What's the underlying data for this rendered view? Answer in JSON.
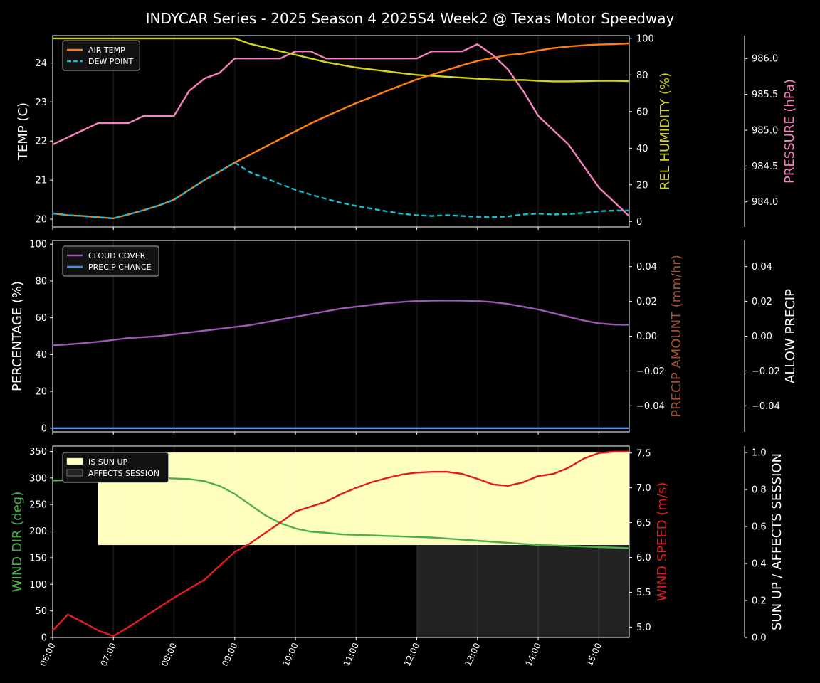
{
  "title": "INDYCAR Series - 2025 Season 4 2025S4 Week2 @ Texas Motor Speedway",
  "colors": {
    "background": "#000000",
    "air_temp": "#ff7f0e",
    "dew_point": "#17becf",
    "humidity": "#d4d41b",
    "pressure": "#f781bf",
    "cloud": "#9b59b6",
    "precip_chance": "#4a90e2",
    "precip_amount_label": "#a0522d",
    "sun_up": "#ffffc0",
    "affects_session": "#222222",
    "wind_dir": "#4daf4a",
    "wind_speed": "#e41a1c"
  },
  "chart_data": [
    {
      "type": "line",
      "panel": "temperature",
      "x": [
        "06:00",
        "06:15",
        "06:30",
        "06:45",
        "07:00",
        "07:15",
        "07:30",
        "07:45",
        "08:00",
        "08:15",
        "08:30",
        "08:45",
        "09:00",
        "09:15",
        "09:30",
        "09:45",
        "10:00",
        "10:15",
        "10:30",
        "10:45",
        "11:00",
        "11:15",
        "11:30",
        "11:45",
        "12:00",
        "12:15",
        "12:30",
        "12:45",
        "13:00",
        "13:15",
        "13:30",
        "13:45",
        "14:00",
        "14:15",
        "14:30",
        "14:45",
        "15:00",
        "15:15",
        "15:30"
      ],
      "ylabel": "TEMP (C)",
      "y2label": "REL HUMIDITY (%)",
      "y3label": "PRESSURE (hPa)",
      "ylim": [
        19.8,
        24.7
      ],
      "y2lim": [
        -3,
        101.5
      ],
      "y3lim": [
        983.65,
        986.32
      ],
      "yticks": [
        20,
        21,
        22,
        23,
        24
      ],
      "y2ticks": [
        0,
        20,
        40,
        60,
        80,
        100
      ],
      "y3ticks": [
        "984.0",
        "984.5",
        "985.0",
        "985.5",
        "986.0"
      ],
      "legend": "top-left",
      "series": [
        {
          "name": "AIR TEMP",
          "axis": "left",
          "style": "solid",
          "values": [
            20.15,
            20.1,
            20.08,
            20.05,
            20.02,
            20.12,
            20.23,
            20.35,
            20.5,
            20.75,
            21.0,
            21.22,
            21.45,
            21.65,
            21.85,
            22.05,
            22.25,
            22.45,
            22.63,
            22.8,
            22.97,
            23.12,
            23.28,
            23.43,
            23.58,
            23.7,
            23.82,
            23.94,
            24.05,
            24.13,
            24.2,
            24.24,
            24.32,
            24.38,
            24.42,
            24.45,
            24.47,
            24.48,
            24.5
          ]
        },
        {
          "name": "DEW POINT",
          "axis": "left",
          "style": "dashed",
          "values": [
            20.15,
            20.1,
            20.08,
            20.05,
            20.02,
            20.12,
            20.23,
            20.35,
            20.5,
            20.75,
            21.0,
            21.22,
            21.45,
            21.2,
            21.05,
            20.9,
            20.75,
            20.63,
            20.52,
            20.42,
            20.34,
            20.27,
            20.2,
            20.14,
            20.1,
            20.08,
            20.1,
            20.08,
            20.06,
            20.05,
            20.07,
            20.12,
            20.14,
            20.12,
            20.13,
            20.16,
            20.2,
            20.22,
            20.22
          ]
        },
        {
          "name": "REL HUMIDITY",
          "axis": "right",
          "style": "solid",
          "values": [
            100,
            100,
            100,
            100,
            100,
            100,
            100,
            100,
            100,
            100,
            100,
            100,
            100,
            97,
            95,
            93,
            91,
            89,
            87,
            85.5,
            84,
            83,
            82,
            81,
            80,
            79.5,
            79,
            78.5,
            78,
            77.5,
            77.2,
            77.3,
            76.8,
            76.5,
            76.5,
            76.6,
            76.8,
            76.8,
            76.6
          ]
        },
        {
          "name": "PRESSURE",
          "axis": "right2",
          "style": "solid",
          "values": [
            984.8,
            984.9,
            985.0,
            985.1,
            985.1,
            985.1,
            985.2,
            985.2,
            985.2,
            985.55,
            985.72,
            985.8,
            986.0,
            986.0,
            986.0,
            986.0,
            986.1,
            986.1,
            986.0,
            986.0,
            986.0,
            986.0,
            986.0,
            986.0,
            986.0,
            986.1,
            986.1,
            986.1,
            986.2,
            986.05,
            985.85,
            985.55,
            985.2,
            985.0,
            984.8,
            984.5,
            984.2,
            984.0,
            983.8
          ]
        }
      ]
    },
    {
      "type": "line",
      "panel": "precipitation",
      "x": [
        "06:00",
        "06:15",
        "06:30",
        "06:45",
        "07:00",
        "07:15",
        "07:30",
        "07:45",
        "08:00",
        "08:15",
        "08:30",
        "08:45",
        "09:00",
        "09:15",
        "09:30",
        "09:45",
        "10:00",
        "10:15",
        "10:30",
        "10:45",
        "11:00",
        "11:15",
        "11:30",
        "11:45",
        "12:00",
        "12:15",
        "12:30",
        "12:45",
        "13:00",
        "13:15",
        "13:30",
        "13:45",
        "14:00",
        "14:15",
        "14:30",
        "14:45",
        "15:00",
        "15:15",
        "15:30"
      ],
      "ylabel": "PERCENTAGE (%)",
      "y2label": "PRECIP AMOUNT (mm/hr)",
      "y3label": "ALLOW PRECIP",
      "ylim": [
        -2,
        102
      ],
      "y2lim": [
        -0.055,
        0.055
      ],
      "y3lim": [
        -0.055,
        0.055
      ],
      "yticks": [
        0,
        20,
        40,
        60,
        80,
        100
      ],
      "y2ticks": [
        "−0.04",
        "−0.02",
        "0.00",
        "0.02",
        "0.04"
      ],
      "y3ticks": [
        "−0.04",
        "−0.02",
        "0.00",
        "0.02",
        "0.04"
      ],
      "legend": "top-left",
      "series": [
        {
          "name": "CLOUD COVER",
          "axis": "left",
          "values": [
            45,
            45.5,
            46.2,
            47,
            48,
            49,
            49.5,
            50,
            51,
            52,
            53,
            54,
            55,
            56,
            57.5,
            59,
            60.5,
            62,
            63.5,
            65,
            66,
            67,
            68,
            68.6,
            69.1,
            69.3,
            69.4,
            69.3,
            69.1,
            68.5,
            67.5,
            66,
            64.5,
            62.5,
            60.5,
            58.5,
            57,
            56.3,
            56.2
          ]
        },
        {
          "name": "PRECIP CHANCE",
          "axis": "left",
          "values": [
            0,
            0,
            0,
            0,
            0,
            0,
            0,
            0,
            0,
            0,
            0,
            0,
            0,
            0,
            0,
            0,
            0,
            0,
            0,
            0,
            0,
            0,
            0,
            0,
            0,
            0,
            0,
            0,
            0,
            0,
            0,
            0,
            0,
            0,
            0,
            0,
            0,
            0,
            0
          ]
        }
      ]
    },
    {
      "type": "line",
      "panel": "wind",
      "x": [
        "06:00",
        "06:15",
        "06:30",
        "06:45",
        "07:00",
        "07:15",
        "07:30",
        "07:45",
        "08:00",
        "08:15",
        "08:30",
        "08:45",
        "09:00",
        "09:15",
        "09:30",
        "09:45",
        "10:00",
        "10:15",
        "10:30",
        "10:45",
        "11:00",
        "11:15",
        "11:30",
        "11:45",
        "12:00",
        "12:15",
        "12:30",
        "12:45",
        "13:00",
        "13:15",
        "13:30",
        "13:45",
        "14:00",
        "14:15",
        "14:30",
        "14:45",
        "15:00",
        "15:15",
        "15:30"
      ],
      "xticks": [
        "06:00",
        "07:00",
        "08:00",
        "09:00",
        "10:00",
        "11:00",
        "12:00",
        "13:00",
        "14:00",
        "15:00"
      ],
      "ylabel": "WIND DIR (deg)",
      "y2label": "WIND SPEED (m/s)",
      "y3label": "SUN UP / AFFECTS SESSION",
      "ylim": [
        0,
        360
      ],
      "y2lim": [
        4.85,
        7.6
      ],
      "y3lim": [
        0,
        1.035
      ],
      "yticks": [
        0,
        50,
        100,
        150,
        200,
        250,
        300,
        350
      ],
      "y2ticks": [
        "5.0",
        "5.5",
        "6.0",
        "6.5",
        "7.0",
        "7.5"
      ],
      "y3ticks": [
        "0.0",
        "0.2",
        "0.4",
        "0.6",
        "0.8",
        "1.0"
      ],
      "legend": "top-left",
      "series": [
        {
          "name": "WIND DIR",
          "axis": "left",
          "values": [
            295,
            296,
            297,
            298,
            300,
            300,
            300,
            300,
            299,
            298,
            294,
            285,
            270,
            250,
            230,
            215,
            205,
            199,
            197,
            194,
            193,
            192,
            191,
            190,
            189,
            188,
            186,
            184,
            182,
            180,
            178,
            176,
            174,
            173,
            172,
            171,
            170,
            169,
            168
          ]
        },
        {
          "name": "WIND SPEED",
          "axis": "right",
          "values": [
            4.95,
            5.18,
            5.07,
            4.95,
            4.87,
            5.0,
            5.14,
            5.28,
            5.42,
            5.55,
            5.68,
            5.88,
            6.08,
            6.2,
            6.35,
            6.5,
            6.66,
            6.73,
            6.8,
            6.91,
            7.0,
            7.08,
            7.14,
            7.19,
            7.22,
            7.23,
            7.23,
            7.2,
            7.13,
            7.05,
            7.03,
            7.08,
            7.17,
            7.2,
            7.29,
            7.42,
            7.5,
            7.52,
            7.52
          ]
        }
      ],
      "bands": [
        {
          "name": "IS SUN UP",
          "x_start": "06:45",
          "x_end": "15:30",
          "value": 1.0
        },
        {
          "name": "AFFECTS SESSION",
          "x_start": "12:00",
          "x_end": "15:30",
          "value": 0.5
        }
      ]
    }
  ]
}
